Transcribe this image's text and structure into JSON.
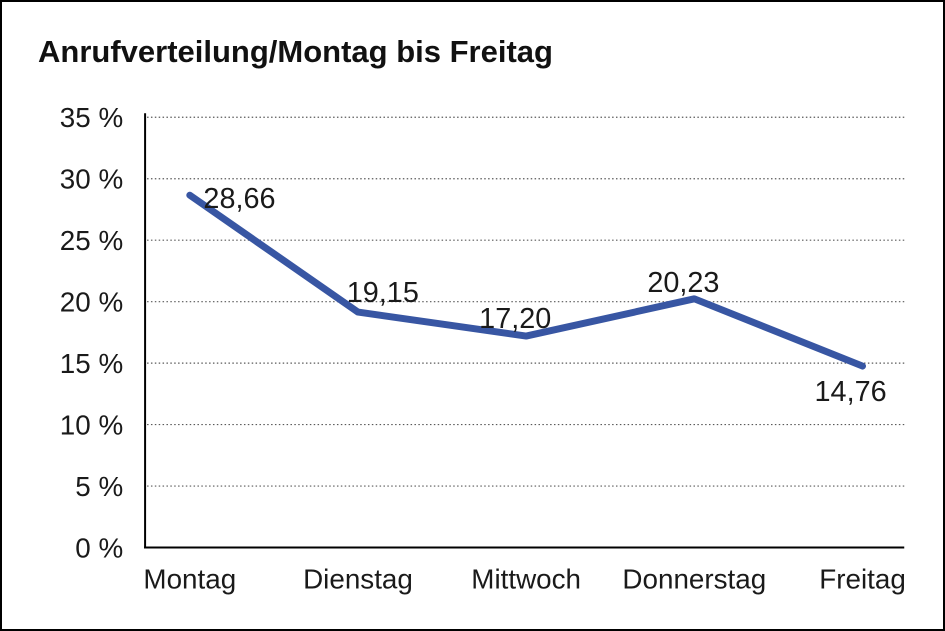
{
  "chart_data": {
    "type": "line",
    "title": "Anrufverteilung/Montag bis Freitag",
    "categories": [
      "Montag",
      "Dienstag",
      "Mittwoch",
      "Donnerstag",
      "Freitag"
    ],
    "values": [
      28.66,
      19.15,
      17.2,
      20.23,
      14.76
    ],
    "point_labels": [
      "28,66",
      "19,15",
      "17,20",
      "20,23",
      "14,76"
    ],
    "y_ticks": [
      0,
      5,
      10,
      15,
      20,
      25,
      30,
      35
    ],
    "y_tick_labels": [
      "0 %",
      "5 %",
      "10 %",
      "15 %",
      "20 %",
      "25 %",
      "30 %",
      "35 %"
    ],
    "ylim": [
      0,
      35
    ],
    "xlabel": "",
    "ylabel": "",
    "grid": "horizontal-dotted",
    "legend": "none",
    "line_color": "#3856A3",
    "axis_color": "#000000",
    "text_color": "#1a1a1a"
  }
}
